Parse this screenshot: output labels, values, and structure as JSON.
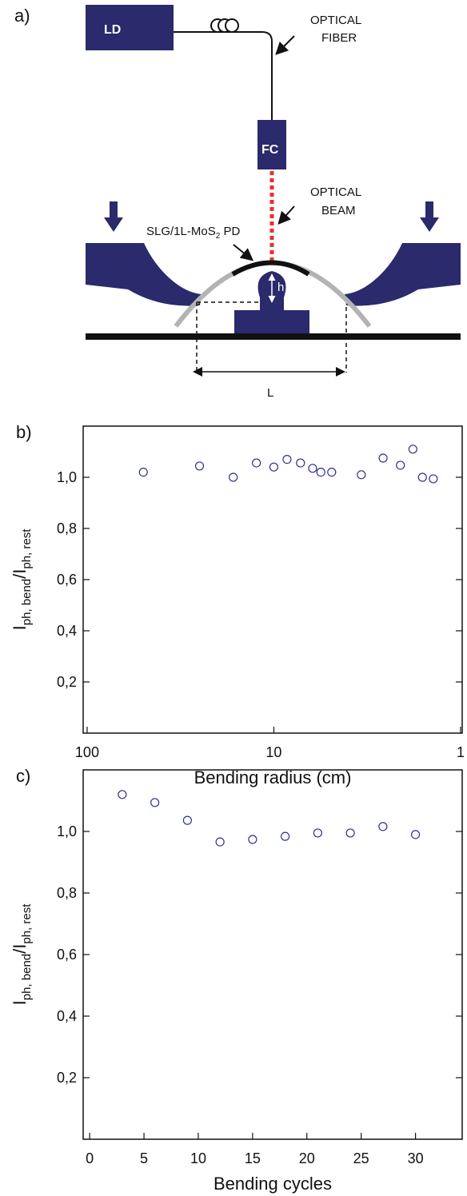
{
  "diagram": {
    "panel_label": "a)",
    "ld": "LD",
    "fc": "FC",
    "fiber_label": [
      "OPTICAL",
      "FIBER"
    ],
    "beam_label": [
      "OPTICAL",
      "BEAM"
    ],
    "pd_label": [
      "SLG/1L-MoS",
      "2",
      " PD"
    ],
    "h": "h",
    "L": "L"
  },
  "chart_data": [
    {
      "type": "scatter",
      "panel_label": "b)",
      "xlabel": "Bending radius (cm)",
      "ylabel": [
        "I",
        "ph, bend",
        "/I",
        "ph, rest"
      ],
      "log_x": true,
      "xlim": [
        105,
        0.98
      ],
      "xticks": [
        100,
        10,
        1
      ],
      "ylim": [
        0,
        1.2
      ],
      "yticks": [
        {
          "value": 0.2,
          "label": "0,2"
        },
        {
          "value": 0.4,
          "label": "0,4"
        },
        {
          "value": 0.6,
          "label": "0,6"
        },
        {
          "value": 0.8,
          "label": "0,8"
        },
        {
          "value": 1.0,
          "label": "1,0"
        }
      ],
      "color": "#2e3192",
      "x": [
        50,
        25,
        16.5,
        12.4,
        10,
        8.5,
        7.2,
        6.2,
        5.6,
        4.9,
        3.4,
        2.6,
        2.1,
        1.8,
        1.6,
        1.4
      ],
      "values": [
        1.02,
        1.044,
        1.0,
        1.056,
        1.04,
        1.07,
        1.056,
        1.035,
        1.02,
        1.02,
        1.01,
        1.075,
        1.047,
        1.11,
        1.0,
        0.994
      ]
    },
    {
      "type": "scatter",
      "panel_label": "c)",
      "xlabel": "Bending cycles",
      "ylabel": [
        "I",
        "ph, bend",
        "/I",
        "ph, rest"
      ],
      "log_x": false,
      "xlim": [
        -0.6,
        34.3
      ],
      "xticks": [
        0,
        5,
        10,
        15,
        20,
        25,
        30
      ],
      "ylim": [
        0,
        1.2
      ],
      "yticks": [
        {
          "value": 0.2,
          "label": "0,2"
        },
        {
          "value": 0.4,
          "label": "0,4"
        },
        {
          "value": 0.6,
          "label": "0,6"
        },
        {
          "value": 0.8,
          "label": "0,8"
        },
        {
          "value": 1.0,
          "label": "1,0"
        }
      ],
      "color": "#2e3192",
      "x": [
        3,
        6,
        9,
        12,
        15,
        18,
        21,
        24,
        27,
        30
      ],
      "values": [
        1.12,
        1.094,
        1.036,
        0.966,
        0.974,
        0.984,
        0.995,
        0.995,
        1.016,
        0.99
      ]
    }
  ]
}
